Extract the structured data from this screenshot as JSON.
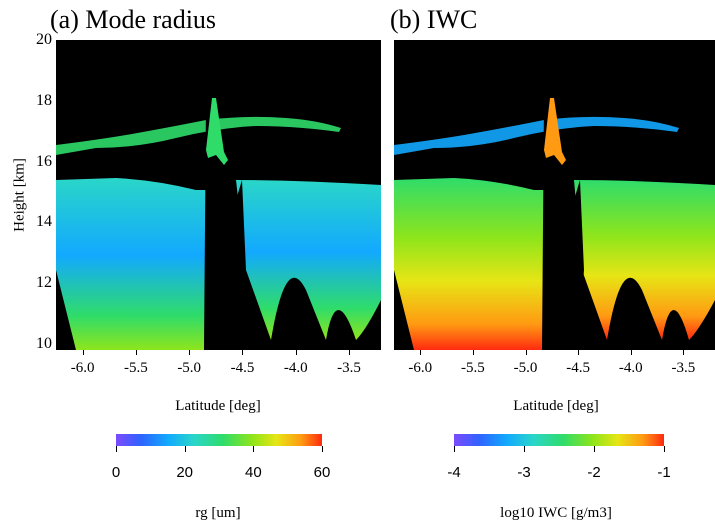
{
  "chart_data": [
    {
      "type": "heatmap",
      "panel_title": "(a) Mode radius",
      "xlabel": "Latitude [deg]",
      "ylabel": "Height [km]",
      "x_ticks": [
        "-6.0",
        "-5.5",
        "-5.0",
        "-4.5",
        "-4.0",
        "-3.5"
      ],
      "y_ticks": [
        "10",
        "12",
        "14",
        "16",
        "18",
        "20"
      ],
      "xlim": [
        -6.25,
        -3.2
      ],
      "ylim": [
        9.8,
        20.0
      ],
      "colorbar": {
        "label": "rg [um]",
        "min": 0,
        "max": 60,
        "ticks": [
          "0",
          "20",
          "40",
          "60"
        ]
      }
    },
    {
      "type": "heatmap",
      "panel_title": "(b) IWC",
      "xlabel": "Latitude [deg]",
      "ylabel": "",
      "x_ticks": [
        "-6.0",
        "-5.5",
        "-5.0",
        "-4.5",
        "-4.0",
        "-3.5"
      ],
      "y_ticks": [],
      "xlim": [
        -6.25,
        -3.2
      ],
      "ylim": [
        9.8,
        20.0
      ],
      "colorbar": {
        "label": "log10 IWC [g/m3]",
        "min": -4,
        "max": -1,
        "ticks": [
          "-4",
          "-3",
          "-2",
          "-1"
        ]
      }
    }
  ],
  "colors": {
    "background": "#000000",
    "colormap": [
      "#7c4bff",
      "#2f63ff",
      "#12a9ff",
      "#2ad6c8",
      "#2fdc6a",
      "#8ee51b",
      "#e7e515",
      "#ff9a12",
      "#ff2a10"
    ]
  }
}
